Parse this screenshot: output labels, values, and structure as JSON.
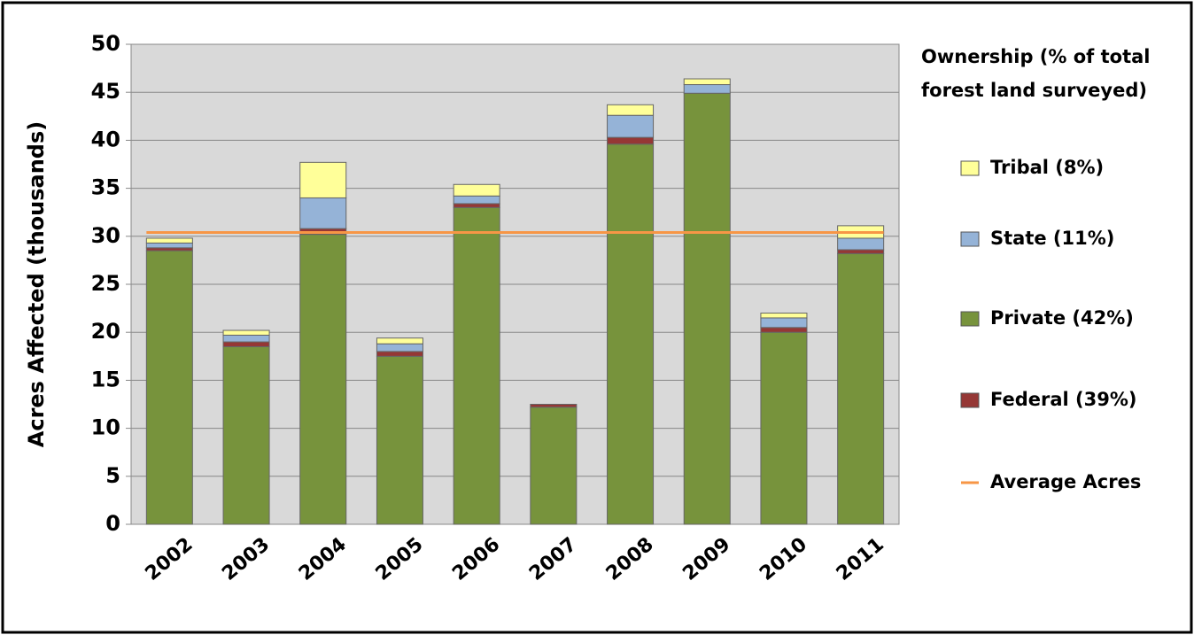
{
  "chart_data": {
    "type": "stacked_bar",
    "y_label": "Acres Affected (thousands)",
    "legend_title": [
      "Ownership (% of total",
      "forest land surveyed)"
    ],
    "categories": [
      "2002",
      "2003",
      "2004",
      "2005",
      "2006",
      "2007",
      "2008",
      "2009",
      "2010",
      "2011"
    ],
    "series": [
      {
        "name": "Private (42%)",
        "color": "#77933c",
        "values": [
          28.5,
          18.5,
          30.2,
          17.5,
          33,
          12.2,
          39.6,
          44.9,
          20,
          28.2
        ]
      },
      {
        "name": "Federal (39%)",
        "color": "#953735",
        "values": [
          0.3,
          0.5,
          0.6,
          0.5,
          0.4,
          0.3,
          0.7,
          0,
          0.5,
          0.4
        ]
      },
      {
        "name": "State (11%)",
        "color": "#95b3d7",
        "values": [
          0.5,
          0.7,
          3.2,
          0.8,
          0.8,
          0,
          2.3,
          0.9,
          1,
          1.2
        ]
      },
      {
        "name": "Tribal (8%)",
        "color": "#ffff99",
        "values": [
          0.5,
          0.5,
          3.7,
          0.6,
          1.2,
          0,
          1.1,
          0.6,
          0.5,
          1.3
        ]
      }
    ],
    "average": {
      "name": "Average Acres",
      "value": 30.4,
      "color": "#f79646"
    },
    "ylim": [
      0,
      50
    ],
    "yticks": [
      0,
      5,
      10,
      15,
      20,
      25,
      30,
      35,
      40,
      45,
      50
    ],
    "grid": true
  }
}
